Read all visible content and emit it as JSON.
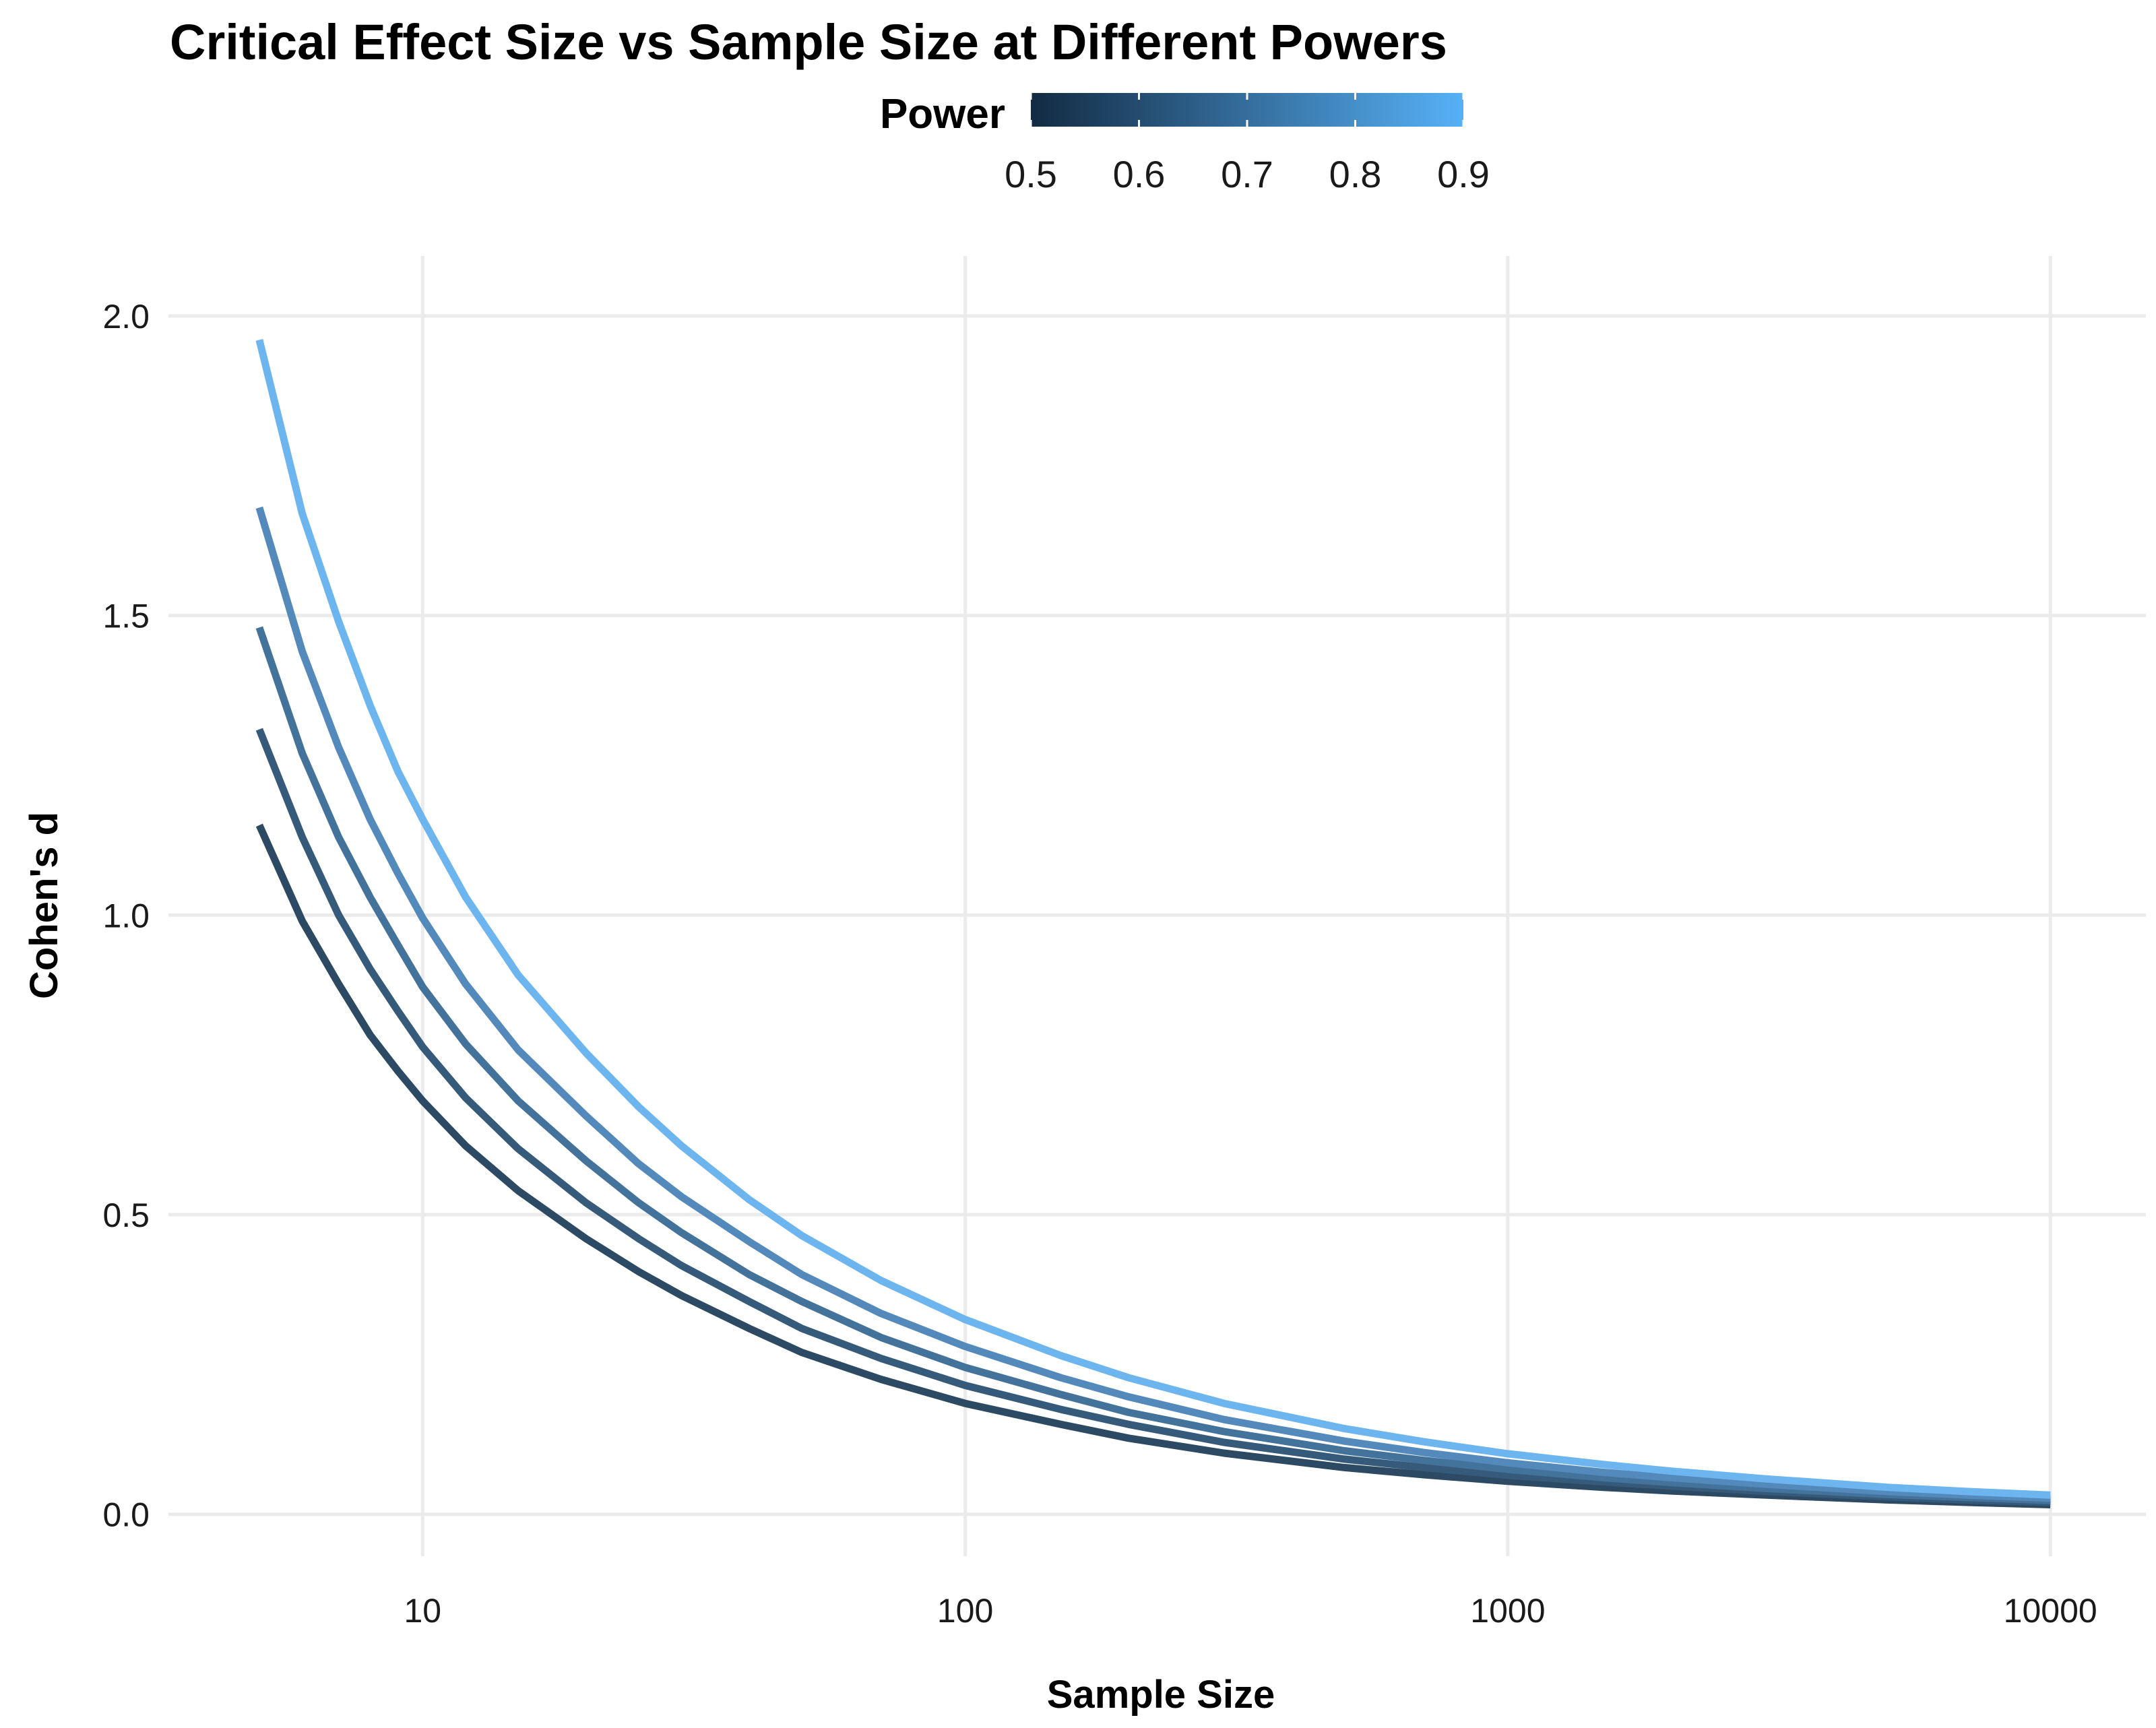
{
  "chart_data": {
    "type": "line",
    "title": "Critical Effect Size vs Sample Size at Different Powers",
    "xlabel": "Sample Size",
    "ylabel": "Cohen's d",
    "x_scale": "log10",
    "xlim": [
      3.4,
      15000
    ],
    "ylim": [
      -0.07,
      2.1
    ],
    "x_ticks": [
      10,
      100,
      1000,
      10000
    ],
    "x_tick_labels": [
      "10",
      "100",
      "1000",
      "10000"
    ],
    "y_ticks": [
      0.0,
      0.5,
      1.0,
      1.5,
      2.0
    ],
    "y_tick_labels": [
      "0.0",
      "0.5",
      "1.0",
      "1.5",
      "2.0"
    ],
    "grid": true,
    "legend": {
      "title": "Power",
      "position": "top",
      "type": "colorbar",
      "ticks": [
        0.5,
        0.6,
        0.7,
        0.8,
        0.9
      ],
      "tick_labels": [
        "0.5",
        "0.6",
        "0.7",
        "0.8",
        "0.9"
      ],
      "color_low": "#132b43",
      "color_high": "#56b1f7"
    },
    "x": [
      5,
      6,
      7,
      8,
      9,
      10,
      12,
      15,
      20,
      25,
      30,
      40,
      50,
      70,
      100,
      150,
      200,
      300,
      500,
      700,
      1000,
      1500,
      2000,
      3000,
      5000,
      7000,
      10000
    ],
    "series": [
      {
        "power": 0.5,
        "color": "#2c4a63",
        "values": [
          1.15,
          0.99,
          0.885,
          0.8,
          0.74,
          0.69,
          0.615,
          0.54,
          0.46,
          0.405,
          0.365,
          0.31,
          0.27,
          0.225,
          0.185,
          0.15,
          0.127,
          0.102,
          0.078,
          0.066,
          0.055,
          0.045,
          0.039,
          0.032,
          0.024,
          0.02,
          0.016
        ]
      },
      {
        "power": 0.6,
        "color": "#365a7a",
        "values": [
          1.31,
          1.13,
          1.0,
          0.91,
          0.84,
          0.78,
          0.695,
          0.61,
          0.52,
          0.46,
          0.415,
          0.355,
          0.31,
          0.26,
          0.215,
          0.175,
          0.15,
          0.12,
          0.092,
          0.078,
          0.065,
          0.054,
          0.047,
          0.038,
          0.029,
          0.024,
          0.02
        ]
      },
      {
        "power": 0.7,
        "color": "#43729b",
        "values": [
          1.48,
          1.27,
          1.13,
          1.03,
          0.95,
          0.88,
          0.785,
          0.69,
          0.59,
          0.52,
          0.47,
          0.4,
          0.355,
          0.295,
          0.245,
          0.2,
          0.17,
          0.138,
          0.106,
          0.09,
          0.075,
          0.061,
          0.053,
          0.043,
          0.033,
          0.028,
          0.023
        ]
      },
      {
        "power": 0.8,
        "color": "#5389bb",
        "values": [
          1.68,
          1.44,
          1.28,
          1.16,
          1.07,
          0.995,
          0.885,
          0.775,
          0.665,
          0.585,
          0.53,
          0.455,
          0.4,
          0.335,
          0.28,
          0.228,
          0.196,
          0.158,
          0.122,
          0.103,
          0.086,
          0.07,
          0.061,
          0.05,
          0.038,
          0.032,
          0.027
        ]
      },
      {
        "power": 0.9,
        "color": "#6cb5ef",
        "values": [
          1.96,
          1.67,
          1.49,
          1.35,
          1.24,
          1.16,
          1.03,
          0.9,
          0.77,
          0.68,
          0.615,
          0.525,
          0.465,
          0.39,
          0.325,
          0.265,
          0.228,
          0.185,
          0.143,
          0.121,
          0.101,
          0.083,
          0.072,
          0.059,
          0.045,
          0.038,
          0.032
        ]
      }
    ]
  }
}
